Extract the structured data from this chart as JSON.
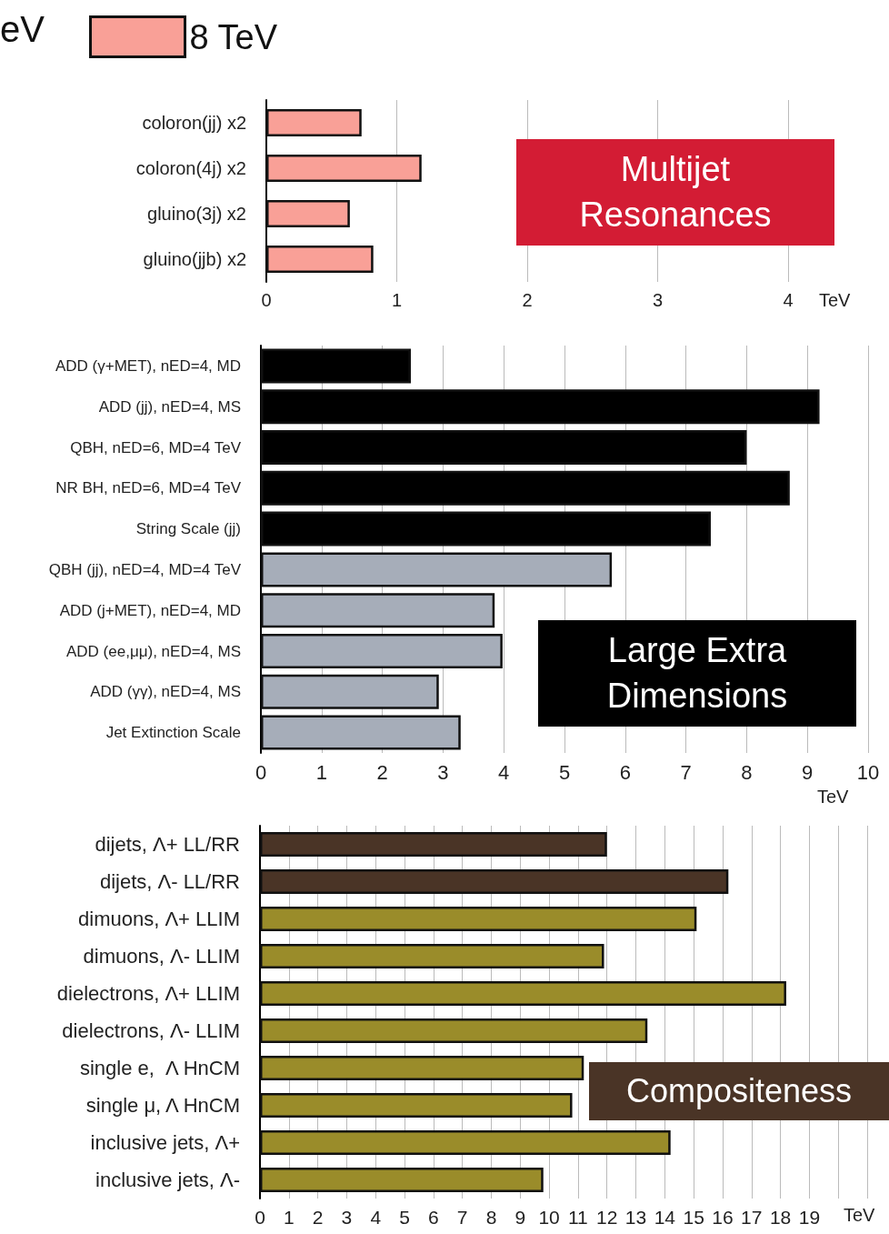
{
  "chart_data": [
    {
      "type": "bar",
      "orientation": "horizontal",
      "categories": [
        "coloron(jj) x2",
        "coloron(4j) x2",
        "gluino(3j) x2",
        "gluino(jjb) x2"
      ],
      "series": [
        {
          "name": "8 TeV",
          "color": "#f9a097",
          "values": [
            0.73,
            1.19,
            0.64,
            0.82
          ]
        }
      ],
      "xlabel": "TeV",
      "xlim": [
        0,
        4
      ],
      "xticks": [
        0,
        1,
        2,
        3,
        4
      ],
      "grid": "x",
      "legend": "top left",
      "annotations": [
        "eV",
        "Multijet\nResonances"
      ]
    },
    {
      "type": "bar",
      "orientation": "horizontal",
      "categories": [
        "ADD (γ+MET), nED=4, MD",
        "ADD (jj), nED=4, MS",
        "QBH, nED=6, MD=4 TeV",
        "NR BH, nED=6, MD=4 TeV",
        "String Scale (jj)",
        "QBH (jj), nED=4, MD=4 TeV",
        "ADD (j+MET), nED=4, MD",
        "ADD (ee,μμ), nED=4, MS",
        "ADD (γγ), nED=4, MS",
        "Jet Extinction Scale"
      ],
      "series": [
        {
          "color": "#000000",
          "values": [
            2.47,
            9.2,
            8.0,
            8.71,
            7.41,
            null,
            null,
            null,
            null,
            null
          ]
        },
        {
          "color": "#a6adb9",
          "values": [
            null,
            null,
            null,
            null,
            null,
            5.78,
            3.85,
            3.98,
            2.93,
            3.29
          ]
        }
      ],
      "xlabel": "TeV",
      "xlim": [
        0,
        10
      ],
      "xticks": [
        0,
        1,
        2,
        3,
        4,
        5,
        6,
        7,
        8,
        9,
        10
      ],
      "grid": "x",
      "annotations": [
        "Large Extra\nDimensions"
      ]
    },
    {
      "type": "bar",
      "orientation": "horizontal",
      "categories": [
        "dijets, Λ+ LL/RR",
        "dijets, Λ- LL/RR",
        "dimuons, Λ+ LLIM",
        "dimuons, Λ- LLIM",
        "dielectrons, Λ+ LLIM",
        "dielectrons, Λ- LLIM",
        "single e,  Λ HnCM",
        "single μ, Λ HnCM",
        "inclusive jets, Λ+",
        "inclusive jets, Λ-"
      ],
      "series": [
        {
          "color": "#4a3426",
          "values": [
            12.0,
            16.2,
            null,
            null,
            null,
            null,
            null,
            null,
            null,
            null
          ]
        },
        {
          "color": "#9a8c2a",
          "values": [
            null,
            null,
            15.1,
            11.9,
            18.2,
            13.4,
            11.2,
            10.8,
            14.2,
            9.8
          ]
        }
      ],
      "xlabel": "TeV",
      "xlim": [
        0,
        21
      ],
      "xticks": [
        0,
        1,
        2,
        3,
        4,
        5,
        6,
        7,
        8,
        9,
        10,
        11,
        12,
        13,
        14,
        15,
        16,
        17,
        18,
        19,
        {
          "value": 20,
          "label": null
        },
        {
          "value": 21,
          "label": null
        }
      ],
      "grid": "x",
      "annotations": [
        "Compositeness"
      ]
    }
  ]
}
